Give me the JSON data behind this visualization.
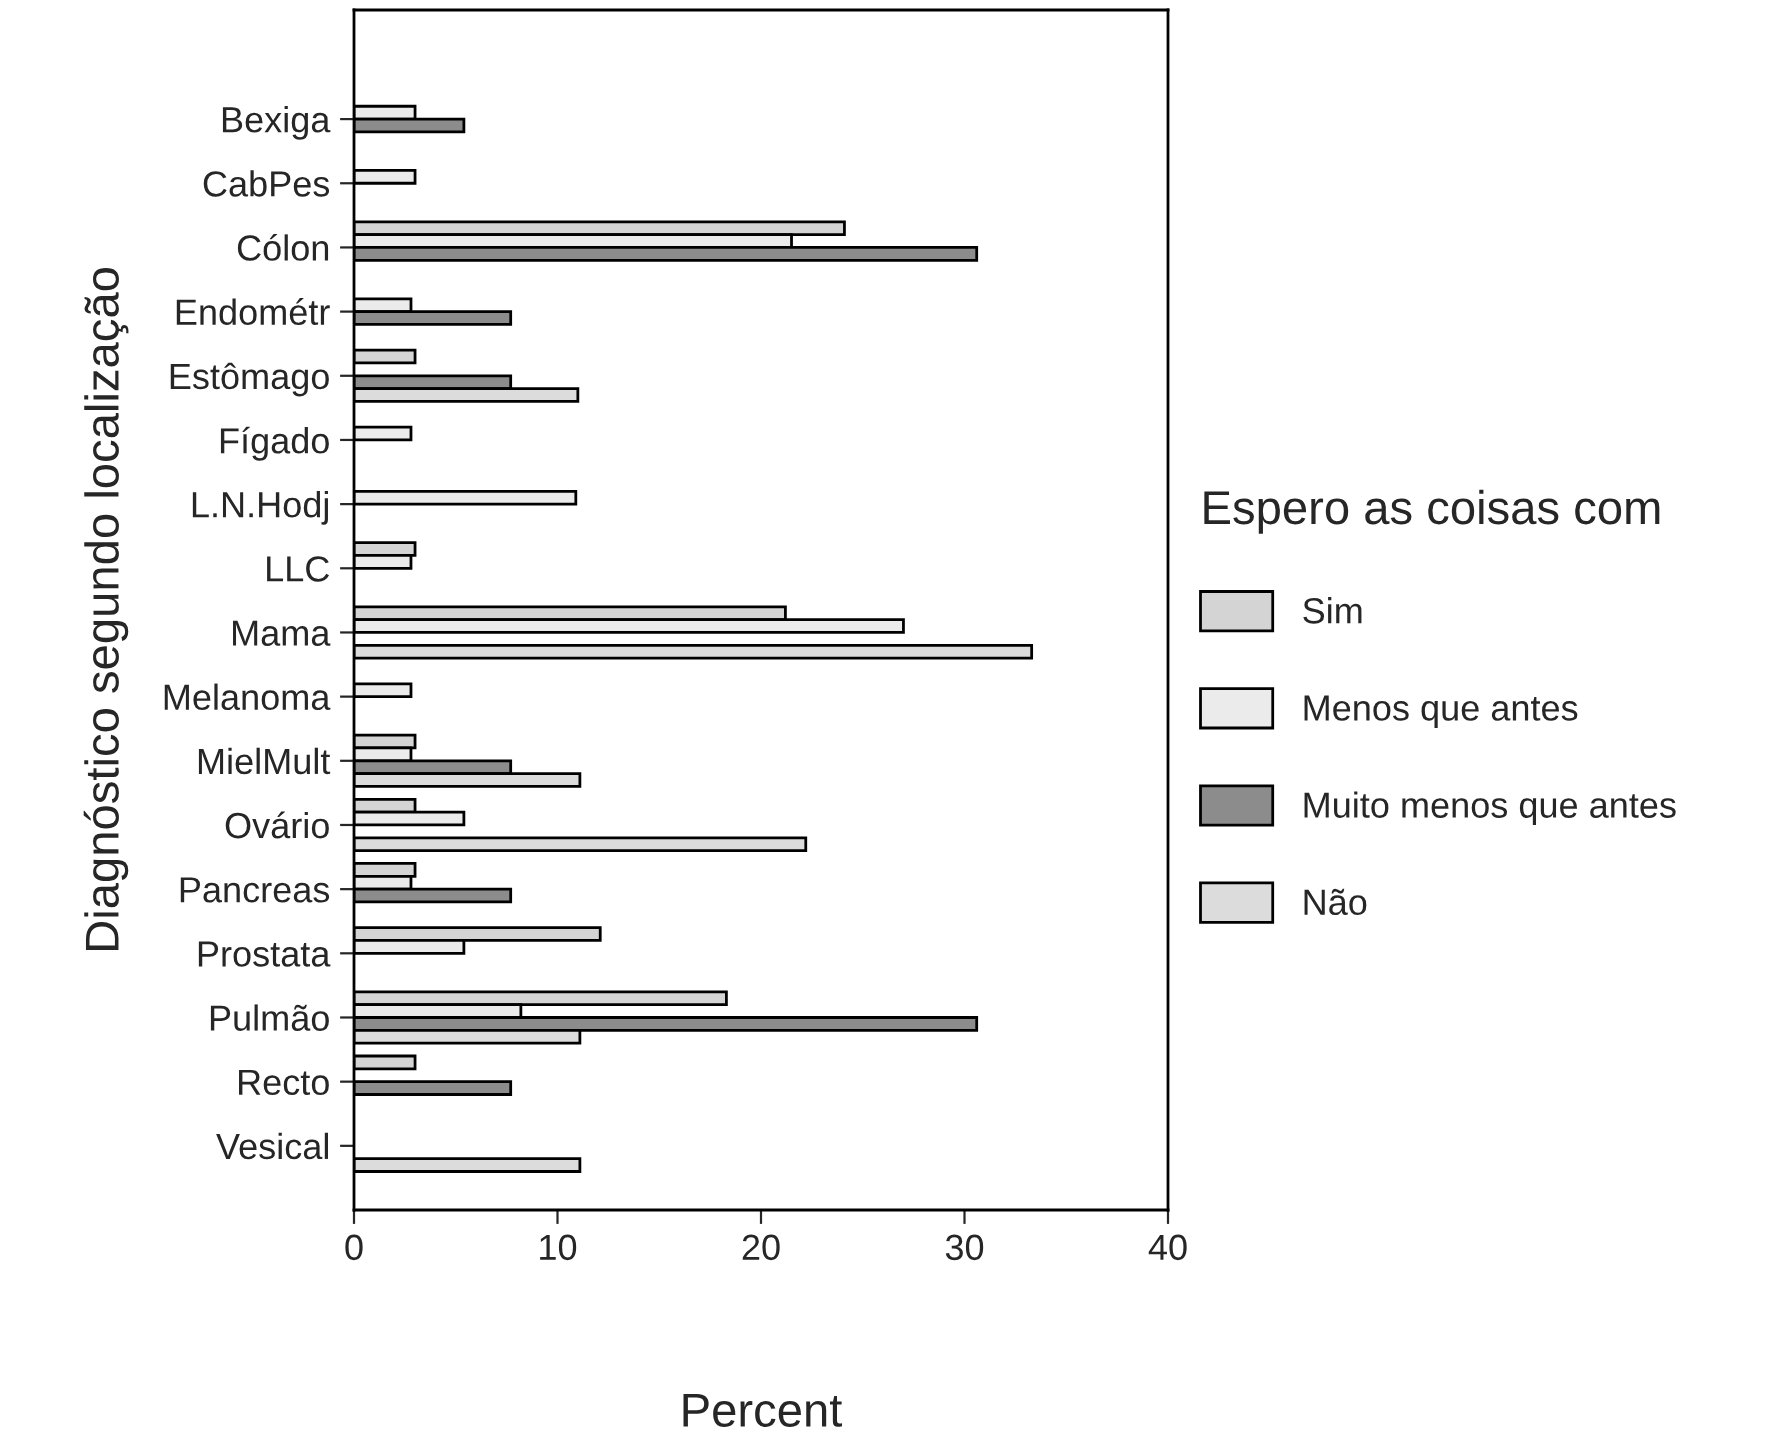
{
  "chart_data": {
    "type": "bar",
    "orientation": "horizontal",
    "xlabel": "Percent",
    "ylabel": "Diagnóstico segundo localização",
    "legend_title": "Espero as coisas com",
    "legend": "right",
    "grid": false,
    "categories": [
      "Bexiga",
      "CabPes",
      "Cólon",
      "Endométr",
      "Estômago",
      "Fígado",
      "L.N.Hodj",
      "LLC",
      "Mama",
      "Melanoma",
      "MielMult",
      "Ovário",
      "Pancreas",
      "Prostata",
      "Pulmão",
      "Recto",
      "Vesical"
    ],
    "xlim": [
      0,
      40
    ],
    "xticks": [
      0,
      10,
      20,
      30,
      40
    ],
    "series": [
      {
        "name": "Sim",
        "color": "#d4d4d4",
        "values": [
          null,
          null,
          24.1,
          null,
          3.0,
          null,
          null,
          3.0,
          21.2,
          null,
          3.0,
          3.0,
          3.0,
          12.1,
          18.3,
          3.0,
          null
        ]
      },
      {
        "name": "Menos que antes",
        "color": "#ebebeb",
        "values": [
          3.0,
          3.0,
          21.5,
          2.8,
          null,
          2.8,
          10.9,
          2.8,
          27.0,
          2.8,
          2.8,
          5.4,
          2.8,
          5.4,
          8.2,
          null,
          null
        ]
      },
      {
        "name": "Muito menos que antes",
        "color": "#8c8c8c",
        "values": [
          5.4,
          null,
          30.6,
          7.7,
          7.7,
          null,
          null,
          null,
          null,
          null,
          7.7,
          null,
          7.7,
          null,
          30.6,
          7.7,
          null
        ]
      },
      {
        "name": "Não",
        "color": "#dcdcdc",
        "values": [
          null,
          null,
          null,
          null,
          11.0,
          null,
          null,
          null,
          33.3,
          null,
          11.1,
          22.2,
          null,
          null,
          11.1,
          null,
          11.1
        ]
      }
    ]
  }
}
